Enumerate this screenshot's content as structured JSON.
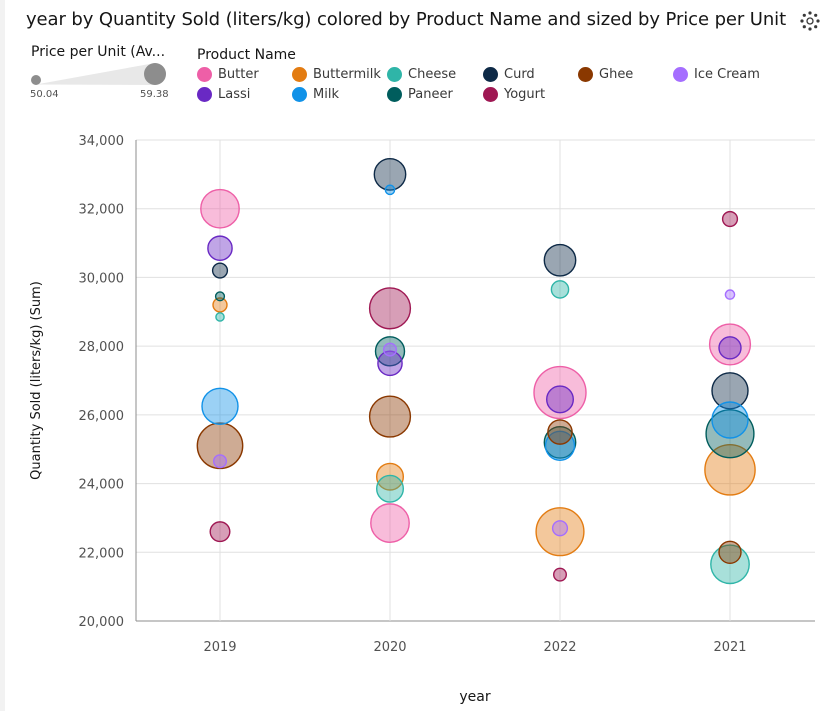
{
  "title": "year by Quantity Sold (liters/kg) colored by Product Name and sized by Price per Unit",
  "icons": {
    "settings": "settings-icon"
  },
  "size_legend": {
    "title": "Price per Unit (Av...",
    "min": "50.04",
    "max": "59.38"
  },
  "color_legend": {
    "title": "Product Name",
    "items": [
      {
        "label": "Butter",
        "color": "#ee5fa7"
      },
      {
        "label": "Buttermilk",
        "color": "#e37c12"
      },
      {
        "label": "Cheese",
        "color": "#2fb5a8"
      },
      {
        "label": "Curd",
        "color": "#0e2a47"
      },
      {
        "label": "Ghee",
        "color": "#8a3800"
      },
      {
        "label": "Ice Cream",
        "color": "#a56eff"
      },
      {
        "label": "Lassi",
        "color": "#6929c4"
      },
      {
        "label": "Milk",
        "color": "#1192e8"
      },
      {
        "label": "Paneer",
        "color": "#005d5d"
      },
      {
        "label": "Yogurt",
        "color": "#9f1853"
      }
    ]
  },
  "chart_data": {
    "type": "scatter",
    "title": "year by Quantity Sold (liters/kg) colored by Product Name and sized by Price per Unit",
    "xlabel": "year",
    "ylabel": "Quantity Sold (liters/kg) (Sum)",
    "categories": [
      "2019",
      "2020",
      "2022",
      "2021"
    ],
    "ylim": [
      20000,
      34000
    ],
    "yticks": [
      "20,000",
      "22,000",
      "24,000",
      "26,000",
      "28,000",
      "30,000",
      "32,000",
      "34,000"
    ],
    "size_range": [
      50.04,
      59.38
    ],
    "grid": true,
    "legend_position": "top",
    "points": [
      {
        "year": "2019",
        "product": "Butter",
        "quantity": 32000,
        "price": 56.5
      },
      {
        "year": "2019",
        "product": "Lassi",
        "quantity": 30850,
        "price": 53.5
      },
      {
        "year": "2019",
        "product": "Curd",
        "quantity": 30200,
        "price": 51.5
      },
      {
        "year": "2019",
        "product": "Paneer",
        "quantity": 29450,
        "price": 50.2
      },
      {
        "year": "2019",
        "product": "Buttermilk",
        "quantity": 29200,
        "price": 51.3
      },
      {
        "year": "2019",
        "product": "Cheese",
        "quantity": 28850,
        "price": 50.1
      },
      {
        "year": "2019",
        "product": "Milk",
        "quantity": 26250,
        "price": 56.0
      },
      {
        "year": "2019",
        "product": "Ghee",
        "quantity": 25100,
        "price": 58.0
      },
      {
        "year": "2019",
        "product": "Ice Cream",
        "quantity": 24650,
        "price": 51.0
      },
      {
        "year": "2019",
        "product": "Yogurt",
        "quantity": 22600,
        "price": 52.5
      },
      {
        "year": "2020",
        "product": "Curd",
        "quantity": 33000,
        "price": 55.0
      },
      {
        "year": "2020",
        "product": "Milk",
        "quantity": 32550,
        "price": 50.3
      },
      {
        "year": "2020",
        "product": "Yogurt",
        "quantity": 29100,
        "price": 57.0
      },
      {
        "year": "2020",
        "product": "Paneer",
        "quantity": 27850,
        "price": 54.5
      },
      {
        "year": "2020",
        "product": "Ice Cream",
        "quantity": 27900,
        "price": 51.0
      },
      {
        "year": "2020",
        "product": "Lassi",
        "quantity": 27500,
        "price": 53.5
      },
      {
        "year": "2020",
        "product": "Ghee",
        "quantity": 25950,
        "price": 57.0
      },
      {
        "year": "2020",
        "product": "Buttermilk",
        "quantity": 24200,
        "price": 54.0
      },
      {
        "year": "2020",
        "product": "Cheese",
        "quantity": 23850,
        "price": 54.0
      },
      {
        "year": "2020",
        "product": "Butter",
        "quantity": 22850,
        "price": 56.5
      },
      {
        "year": "2022",
        "product": "Curd",
        "quantity": 30500,
        "price": 55.0
      },
      {
        "year": "2022",
        "product": "Cheese",
        "quantity": 29650,
        "price": 52.0
      },
      {
        "year": "2022",
        "product": "Butter",
        "quantity": 26650,
        "price": 59.38
      },
      {
        "year": "2022",
        "product": "Lassi",
        "quantity": 26450,
        "price": 54.0
      },
      {
        "year": "2022",
        "product": "Ghee",
        "quantity": 25500,
        "price": 53.5
      },
      {
        "year": "2022",
        "product": "Paneer",
        "quantity": 25200,
        "price": 55.0
      },
      {
        "year": "2022",
        "product": "Milk",
        "quantity": 25100,
        "price": 54.5
      },
      {
        "year": "2022",
        "product": "Buttermilk",
        "quantity": 22600,
        "price": 58.5
      },
      {
        "year": "2022",
        "product": "Ice Cream",
        "quantity": 22700,
        "price": 51.5
      },
      {
        "year": "2022",
        "product": "Yogurt",
        "quantity": 21350,
        "price": 51.0
      },
      {
        "year": "2021",
        "product": "Yogurt",
        "quantity": 31700,
        "price": 51.5
      },
      {
        "year": "2021",
        "product": "Ice Cream",
        "quantity": 29500,
        "price": 50.3
      },
      {
        "year": "2021",
        "product": "Butter",
        "quantity": 28050,
        "price": 57.0
      },
      {
        "year": "2021",
        "product": "Lassi",
        "quantity": 27950,
        "price": 53.0
      },
      {
        "year": "2021",
        "product": "Curd",
        "quantity": 26700,
        "price": 56.0
      },
      {
        "year": "2021",
        "product": "Milk",
        "quantity": 25850,
        "price": 56.0
      },
      {
        "year": "2021",
        "product": "Paneer",
        "quantity": 25450,
        "price": 58.5
      },
      {
        "year": "2021",
        "product": "Buttermilk",
        "quantity": 24400,
        "price": 59.0
      },
      {
        "year": "2021",
        "product": "Ghee",
        "quantity": 22000,
        "price": 53.0
      },
      {
        "year": "2021",
        "product": "Cheese",
        "quantity": 21650,
        "price": 56.5
      }
    ]
  }
}
